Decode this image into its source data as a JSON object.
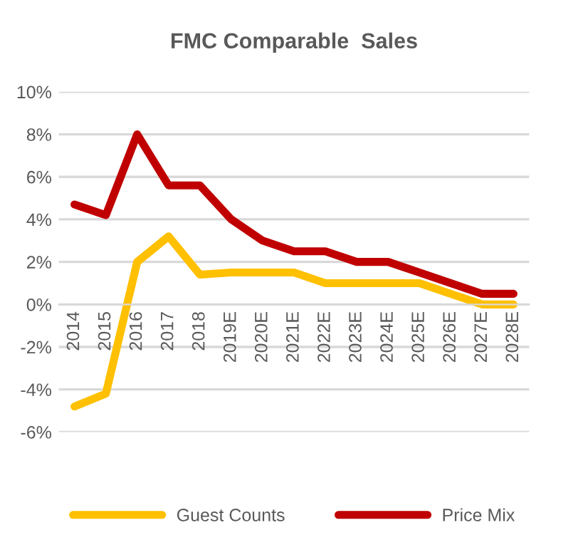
{
  "chart_data": {
    "type": "line",
    "title": "FMC Comparable  Sales",
    "categories": [
      "2014",
      "2015",
      "2016",
      "2017",
      "2018",
      "2019E",
      "2020E",
      "2021E",
      "2022E",
      "2023E",
      "2024E",
      "2025E",
      "2026E",
      "2027E",
      "2028E"
    ],
    "series": [
      {
        "name": "Guest Counts",
        "color": "#ffc000",
        "values": [
          -4.8,
          -4.2,
          2.0,
          3.2,
          1.4,
          1.5,
          1.5,
          1.5,
          1.0,
          1.0,
          1.0,
          1.0,
          0.5,
          0.0,
          0.0
        ]
      },
      {
        "name": "Price Mix",
        "color": "#c00000",
        "values": [
          4.7,
          4.2,
          8.0,
          5.6,
          5.6,
          4.0,
          3.0,
          2.5,
          2.5,
          2.0,
          2.0,
          1.5,
          1.0,
          0.5,
          0.5
        ]
      }
    ],
    "ylim": [
      -6,
      10
    ],
    "yticks": [
      {
        "value": -6,
        "label": "-6%"
      },
      {
        "value": -4,
        "label": "-4%"
      },
      {
        "value": -2,
        "label": "-2%"
      },
      {
        "value": 0,
        "label": "0%"
      },
      {
        "value": 2,
        "label": "2%"
      },
      {
        "value": 4,
        "label": "4%"
      },
      {
        "value": 6,
        "label": "6%"
      },
      {
        "value": 8,
        "label": "8%"
      },
      {
        "value": 10,
        "label": "10%"
      }
    ],
    "grid": "y",
    "legend": "bottom",
    "marker": "none",
    "line_style": "solid"
  }
}
